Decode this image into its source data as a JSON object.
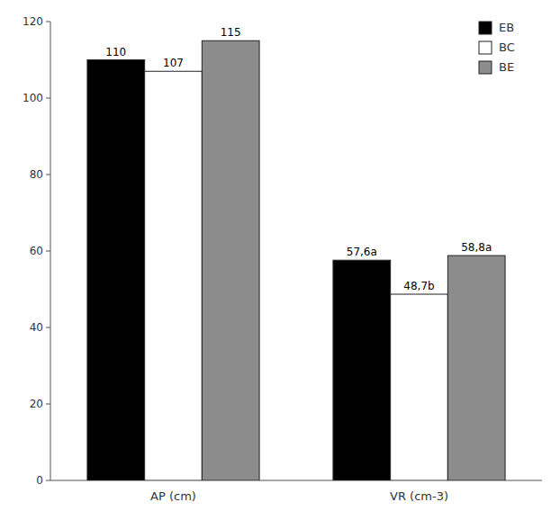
{
  "chart_data": {
    "type": "bar",
    "categories": [
      "AP (cm)",
      "VR (cm-3)"
    ],
    "series": [
      {
        "name": "EB",
        "color": "#000000",
        "values": [
          110,
          57.6
        ],
        "value_labels": [
          "110",
          "57,6a"
        ]
      },
      {
        "name": "BC",
        "color": "#ffffff",
        "values": [
          107,
          48.7
        ],
        "value_labels": [
          "107",
          "48,7b"
        ]
      },
      {
        "name": "BE",
        "color": "#8c8c8c",
        "values": [
          115,
          58.8
        ],
        "value_labels": [
          "115",
          "58,8a"
        ]
      }
    ],
    "ylim": [
      0,
      120
    ],
    "yticks": [
      0,
      20,
      40,
      60,
      80,
      100,
      120
    ],
    "grid": false,
    "legend": "upper right",
    "data_labels": true
  }
}
